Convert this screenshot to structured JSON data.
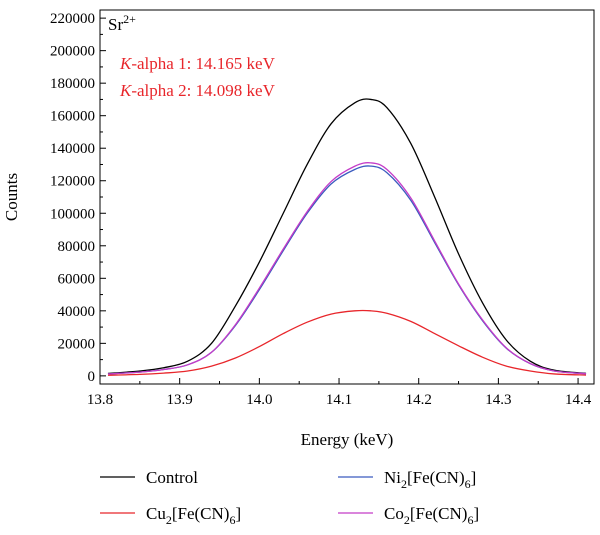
{
  "chart_data": {
    "type": "line",
    "panel_label": "Sr",
    "panel_label_sup": "2+",
    "xlabel": "Energy (keV)",
    "ylabel": "Counts",
    "xlim": [
      13.8,
      14.42
    ],
    "ylim": [
      -5000,
      225000
    ],
    "x_ticks": [
      13.8,
      13.9,
      14.0,
      14.1,
      14.2,
      14.3,
      14.4
    ],
    "x_tick_labels": [
      "13.8",
      "13.9",
      "14.0",
      "14.1",
      "14.2",
      "14.3",
      "14.4"
    ],
    "y_ticks": [
      0,
      20000,
      40000,
      60000,
      80000,
      100000,
      120000,
      140000,
      160000,
      180000,
      200000,
      220000
    ],
    "y_tick_labels": [
      "0",
      "20000",
      "40000",
      "60000",
      "80000",
      "100000",
      "120000",
      "140000",
      "160000",
      "180000",
      "200000",
      "220000"
    ],
    "annotations": [
      {
        "italic": "K",
        "text": "-alpha 1: 14.165 keV",
        "color": "#e8262b"
      },
      {
        "italic": "K",
        "text": "-alpha 2: 14.098 keV",
        "color": "#e8262b"
      }
    ],
    "x": [
      13.81,
      13.85,
      13.88,
      13.91,
      13.94,
      13.97,
      14.0,
      14.03,
      14.06,
      14.09,
      14.12,
      14.14,
      14.16,
      14.19,
      14.22,
      14.25,
      14.28,
      14.31,
      14.34,
      14.37,
      14.41
    ],
    "series": [
      {
        "name": "Control",
        "color": "#000000",
        "values": [
          1500,
          3000,
          5000,
          9000,
          20000,
          43000,
          70000,
          100000,
          130000,
          155000,
          168000,
          170000,
          165000,
          143000,
          110000,
          75000,
          45000,
          22000,
          9000,
          3500,
          1500
        ]
      },
      {
        "name": "Cu",
        "name_sub1": "2",
        "name_mid": "[Fe(CN)",
        "name_sub2": "6",
        "name_end": "]",
        "color": "#e8262b",
        "values": [
          400,
          900,
          1700,
          3000,
          6000,
          11000,
          18000,
          26000,
          33000,
          38000,
          40000,
          40000,
          38500,
          33500,
          26000,
          18500,
          11500,
          6000,
          3000,
          1200,
          500
        ]
      },
      {
        "name": "Ni",
        "name_sub1": "2",
        "name_mid": "[Fe(CN)",
        "name_sub2": "6",
        "name_end": "]",
        "color": "#3a5bbf",
        "values": [
          1200,
          2300,
          3900,
          6800,
          14500,
          31000,
          53000,
          77000,
          100000,
          118000,
          127000,
          129000,
          125000,
          108000,
          82000,
          56000,
          34000,
          17000,
          7500,
          3000,
          1300
        ]
      },
      {
        "name": "Co",
        "name_sub1": "2",
        "name_mid": "[Fe(CN)",
        "name_sub2": "6",
        "name_end": "]",
        "color": "#c43cc8",
        "values": [
          1200,
          2300,
          3900,
          6800,
          14500,
          31500,
          54000,
          78000,
          101000,
          119500,
          129000,
          131000,
          127000,
          109500,
          83000,
          56500,
          34500,
          17200,
          7600,
          3000,
          1300
        ]
      }
    ],
    "legend_placement": "bottom"
  }
}
